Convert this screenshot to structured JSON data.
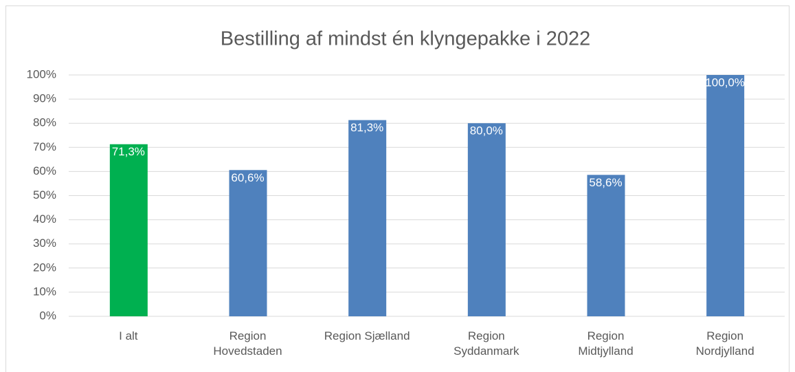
{
  "chart_data": {
    "type": "bar",
    "title": "Bestilling af mindst én klyngepakke i 2022",
    "categories": [
      "I alt",
      "Region Hovedstaden",
      "Region Sjælland",
      "Region Syddanmark",
      "Region Midtjylland",
      "Region Nordjylland"
    ],
    "values": [
      71.3,
      60.6,
      81.3,
      80.0,
      58.6,
      100.0
    ],
    "value_labels": [
      "71,3%",
      "60,6%",
      "81,3%",
      "80,0%",
      "58,6%",
      "100,0%"
    ],
    "colors": [
      "#00b050",
      "#4f81bd",
      "#4f81bd",
      "#4f81bd",
      "#4f81bd",
      "#4f81bd"
    ],
    "ylim": [
      0,
      100
    ],
    "yticks": [
      {
        "value": 0,
        "label": "0%"
      },
      {
        "value": 10,
        "label": "10%"
      },
      {
        "value": 20,
        "label": "20%"
      },
      {
        "value": 30,
        "label": "30%"
      },
      {
        "value": 40,
        "label": "40%"
      },
      {
        "value": 50,
        "label": "50%"
      },
      {
        "value": 60,
        "label": "60%"
      },
      {
        "value": 70,
        "label": "70%"
      },
      {
        "value": 80,
        "label": "80%"
      },
      {
        "value": 90,
        "label": "90%"
      },
      {
        "value": 100,
        "label": "100%"
      }
    ],
    "grid": true
  }
}
